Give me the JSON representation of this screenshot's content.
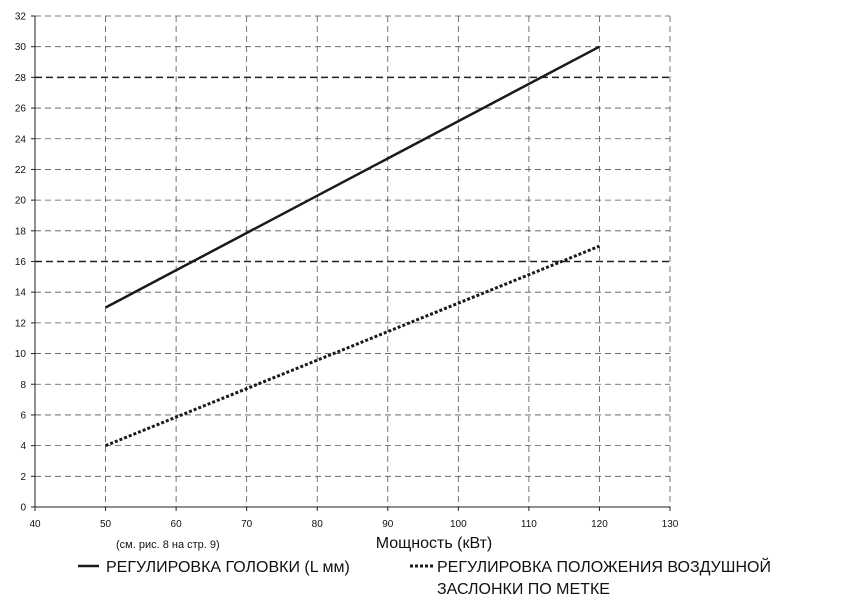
{
  "chart_data": {
    "type": "line",
    "xlabel": "Мощность (кВт)",
    "ylabel": "",
    "xlim": [
      40,
      130
    ],
    "ylim": [
      0,
      32
    ],
    "xticks": [
      40,
      50,
      60,
      70,
      80,
      90,
      100,
      110,
      120,
      130
    ],
    "yticks": [
      0,
      2,
      4,
      6,
      8,
      10,
      12,
      14,
      16,
      18,
      20,
      22,
      24,
      26,
      28,
      30,
      32
    ],
    "grid": true,
    "reference_lines_y": [
      16,
      28
    ],
    "annotation": "(см. рис. 8 на стр. 9)",
    "legend_placement": "bottom",
    "series": [
      {
        "name": "РЕГУЛИРОВКА ГОЛОВКИ (L мм)",
        "style": "solid",
        "color": "#1a1a1a",
        "x": [
          50,
          120
        ],
        "y": [
          13,
          30
        ]
      },
      {
        "name": "РЕГУЛИРОВКА ПОЛОЖЕНИЯ ВОЗДУШНОЙ ЗАСЛОНКИ ПО МЕТКЕ",
        "legend_lines": [
          "РЕГУЛИРОВКА ПОЛОЖЕНИЯ ВОЗДУШНОЙ",
          "ЗАСЛОНКИ ПО МЕТКЕ"
        ],
        "style": "dotted",
        "color": "#1a1a1a",
        "x": [
          50,
          120
        ],
        "y": [
          4,
          17
        ]
      }
    ]
  }
}
